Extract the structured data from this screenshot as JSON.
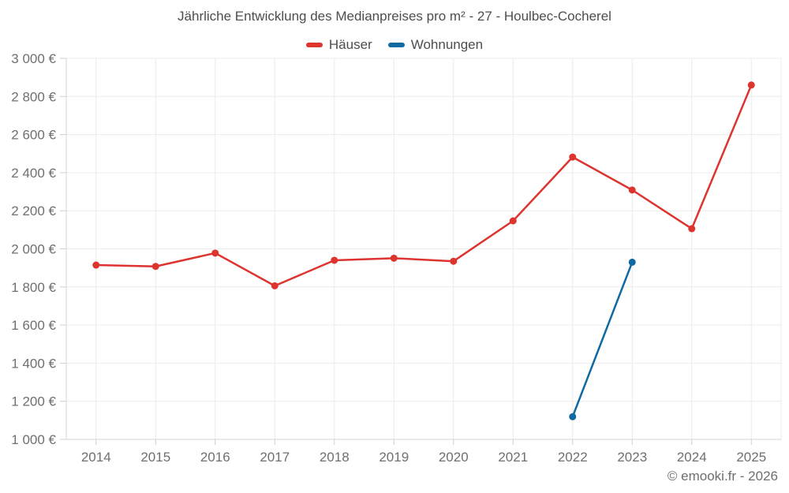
{
  "chart_data": {
    "type": "line",
    "title": "Jährliche Entwicklung des Medianpreises pro m² - 27 - Houlbec-Cocherel",
    "categories": [
      "2014",
      "2015",
      "2016",
      "2017",
      "2018",
      "2019",
      "2020",
      "2021",
      "2022",
      "2023",
      "2024",
      "2025"
    ],
    "series": [
      {
        "name": "Häuser",
        "color": "#dd342f",
        "values": [
          1915,
          1908,
          1978,
          1806,
          1940,
          1951,
          1935,
          2147,
          2482,
          2309,
          2106,
          2860
        ]
      },
      {
        "name": "Wohnungen",
        "color": "#1169a3",
        "values": [
          null,
          null,
          null,
          null,
          null,
          null,
          null,
          null,
          1119,
          1930,
          null,
          null
        ]
      }
    ],
    "ylim": [
      1000,
      3000
    ],
    "y_tick_step": 200,
    "y_tick_labels": [
      "1 000 €",
      "1 200 €",
      "1 400 €",
      "1 600 €",
      "1 800 €",
      "2 000 €",
      "2 200 €",
      "2 400 €",
      "2 600 €",
      "2 800 €",
      "3 000 €"
    ],
    "grid": true,
    "legend_position": "top",
    "colors": {
      "grid_line": "#ececec",
      "axis_line": "#d4d4d4",
      "tick_mark": "#cfcfcf",
      "axis_text": "#6f6f6f",
      "title_text": "#4d4d4d"
    }
  },
  "footer": {
    "copyright": "© emooki.fr - 2026"
  }
}
